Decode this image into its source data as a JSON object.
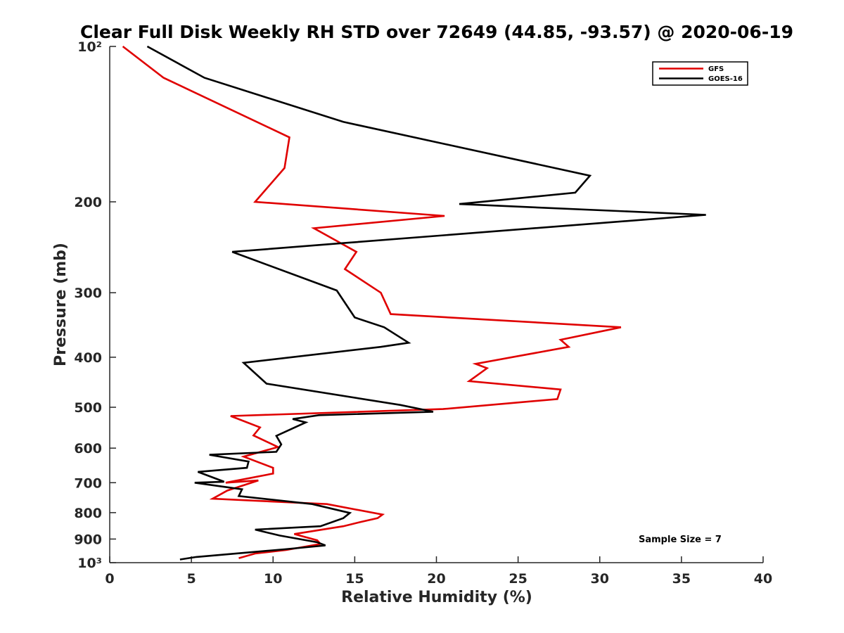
{
  "chart_data": {
    "type": "line",
    "title": "Clear Full Disk Weekly RH STD over 72649 (44.85, -93.57) @ 2020-06-19",
    "xlabel": "Relative Humidity (%)",
    "ylabel": "Pressure (mb)",
    "xlim": [
      0,
      40
    ],
    "ylim": [
      100,
      1000
    ],
    "y_scale": "log",
    "y_reversed": true,
    "x_ticks": [
      0,
      5,
      10,
      15,
      20,
      25,
      30,
      35,
      40
    ],
    "x_tick_labels": [
      "0",
      "5",
      "10",
      "15",
      "20",
      "25",
      "30",
      "35",
      "40"
    ],
    "y_ticks": [
      100,
      200,
      300,
      400,
      500,
      600,
      700,
      800,
      900,
      1000
    ],
    "y_tick_labels": [
      "10²",
      "200",
      "300",
      "400",
      "500",
      "600",
      "700",
      "800",
      "900",
      "10³"
    ],
    "grid": false,
    "legend_position": "top-right",
    "annotation": "Sample Size = 7",
    "series": [
      {
        "name": "GFS",
        "color": "#e00000",
        "x": [
          0.8,
          3.3,
          11.0,
          10.7,
          8.9,
          20.5,
          12.5,
          15.1,
          14.4,
          16.6,
          17.2,
          31.3,
          27.6,
          28.1,
          22.4,
          23.1,
          22.0,
          27.6,
          27.4,
          20.4,
          7.4,
          9.2,
          8.8,
          10.3,
          8.2,
          10.0,
          10.0,
          7.1,
          9.1,
          7.2,
          6.3,
          13.3,
          16.7,
          16.4,
          15.3,
          14.3,
          11.3,
          12.7,
          12.9,
          10.8,
          8.9,
          7.9
        ],
        "y": [
          100,
          115,
          150,
          172,
          200,
          213,
          225,
          250,
          270,
          300,
          330,
          350,
          370,
          382,
          412,
          420,
          445,
          462,
          482,
          504,
          520,
          547,
          567,
          597,
          623,
          655,
          672,
          700,
          693,
          725,
          752,
          770,
          807,
          820,
          835,
          850,
          880,
          905,
          920,
          945,
          960,
          980
        ]
      },
      {
        "name": "GOES-16",
        "color": "#000000",
        "x": [
          2.3,
          5.8,
          14.3,
          29.4,
          28.5,
          21.4,
          36.5,
          14.6,
          7.5,
          13.9,
          15.0,
          16.8,
          18.3,
          16.6,
          8.2,
          9.6,
          17.8,
          19.8,
          12.8,
          11.2,
          12.0,
          10.2,
          10.5,
          10.2,
          6.1,
          8.5,
          8.4,
          5.4,
          7.0,
          5.2,
          8.1,
          7.9,
          12.4,
          14.7,
          14.3,
          12.9,
          8.9,
          10.4,
          12.7,
          13.2,
          10.7,
          5.3,
          4.3
        ],
        "y": [
          100,
          115,
          140,
          178,
          192,
          202,
          212,
          240,
          250,
          297,
          335,
          350,
          375,
          382,
          410,
          450,
          495,
          510,
          518,
          527,
          535,
          568,
          590,
          610,
          618,
          637,
          655,
          667,
          697,
          700,
          721,
          743,
          770,
          801,
          820,
          850,
          863,
          886,
          913,
          926,
          942,
          975,
          986
        ]
      }
    ]
  }
}
